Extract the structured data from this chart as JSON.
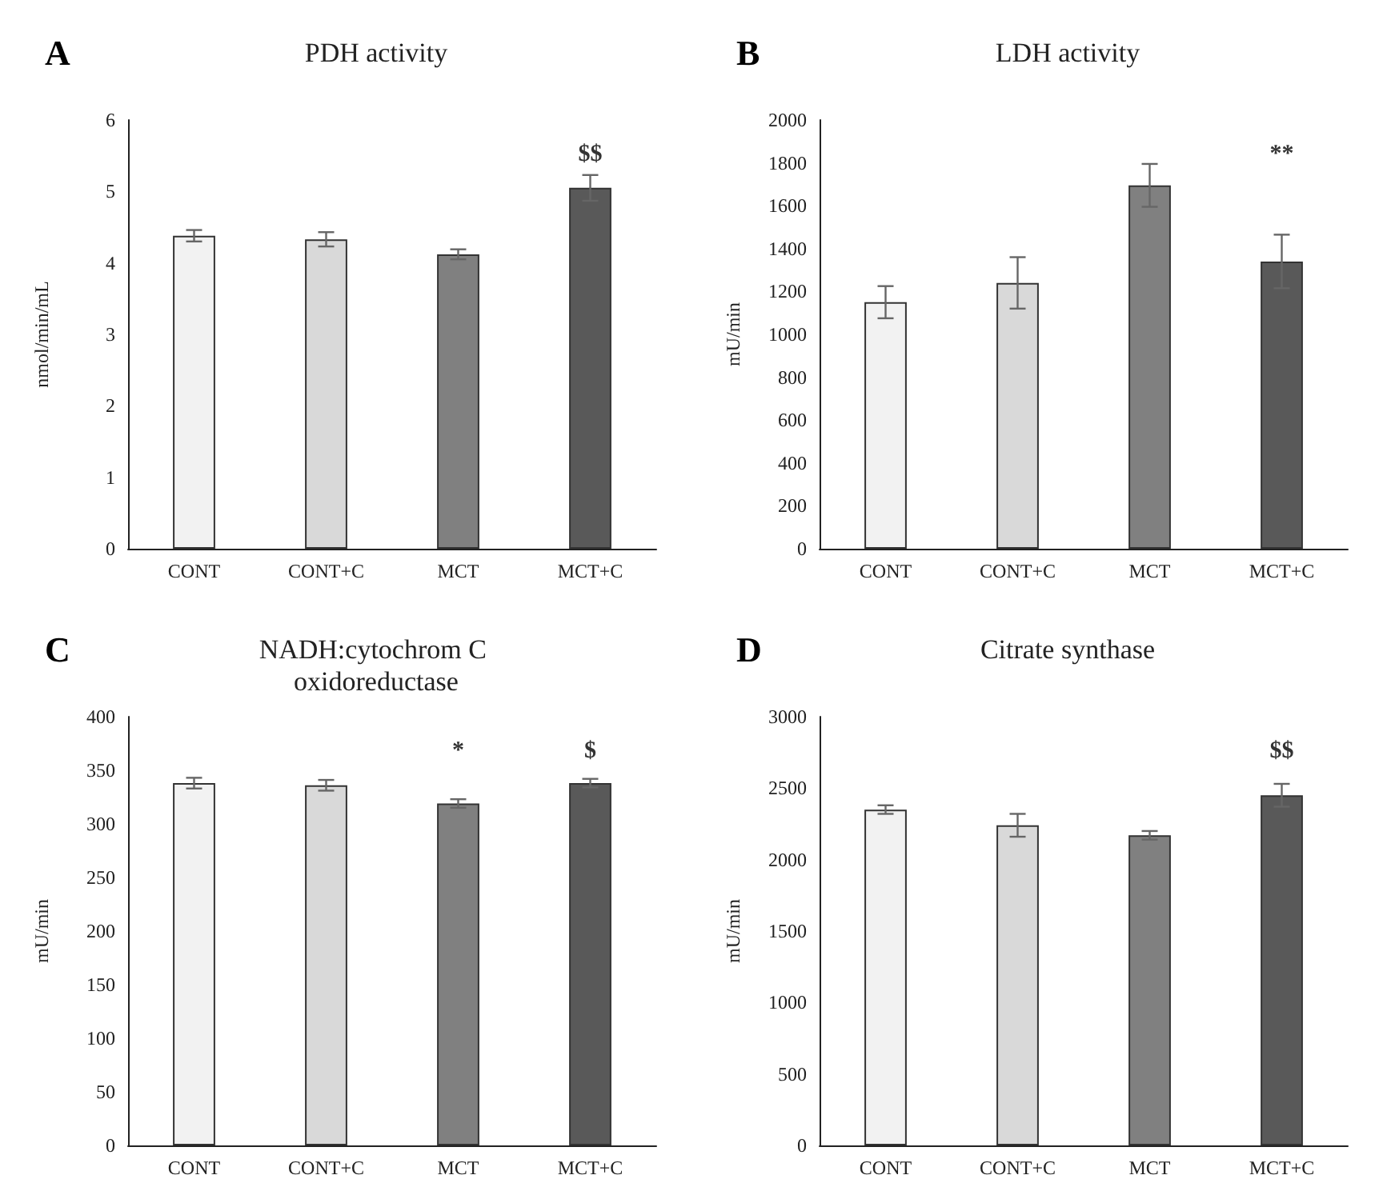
{
  "chart_data": [
    {
      "type": "bar",
      "title": "PDH activity",
      "ylabel": "nmol/min/mL",
      "categories": [
        "CONT",
        "CONT+C",
        "MCT",
        "MCT+C"
      ],
      "values": [
        4.38,
        4.33,
        4.12,
        5.05
      ],
      "colors": [
        "#f2f2f2",
        "#d9d9d9",
        "#808080",
        "#595959"
      ],
      "errors": [
        0.08,
        0.1,
        0.07,
        0.18
      ],
      "ylim": [
        0,
        6
      ],
      "yticks": [
        0,
        1,
        2,
        3,
        4,
        5,
        6
      ],
      "annotations": [
        "A",
        "$$"
      ]
    },
    {
      "type": "bar",
      "title": "LDH activity",
      "ylabel": "mU/min",
      "categories": [
        "CONT",
        "CONT+C",
        "MCT",
        "MCT+C"
      ],
      "values": [
        1150,
        1240,
        1695,
        1340
      ],
      "colors": [
        "#f2f2f2",
        "#d9d9d9",
        "#808080",
        "#595959"
      ],
      "errors": [
        75,
        120,
        100,
        125
      ],
      "ylim": [
        0,
        2000
      ],
      "yticks": [
        0,
        200,
        400,
        600,
        800,
        1000,
        1200,
        1400,
        1600,
        1800,
        2000
      ],
      "annotations": [
        "B",
        "**"
      ]
    },
    {
      "type": "bar",
      "title": "NADH:cytochrom C oxidoreductase",
      "ylabel": "mU/min",
      "categories": [
        "CONT",
        "CONT+C",
        "MCT",
        "MCT+C"
      ],
      "values": [
        338,
        336,
        319,
        338
      ],
      "colors": [
        "#f2f2f2",
        "#d9d9d9",
        "#808080",
        "#595959"
      ],
      "errors": [
        5,
        5,
        4,
        4
      ],
      "ylim": [
        0,
        400
      ],
      "yticks": [
        0,
        50,
        100,
        150,
        200,
        250,
        300,
        350,
        400
      ],
      "annotations": [
        "C",
        "*",
        "$"
      ]
    },
    {
      "type": "bar",
      "title": "Citrate synthase",
      "ylabel": "mU/min",
      "categories": [
        "CONT",
        "CONT+C",
        "MCT",
        "MCT+C"
      ],
      "values": [
        2350,
        2240,
        2170,
        2450
      ],
      "colors": [
        "#f2f2f2",
        "#d9d9d9",
        "#808080",
        "#595959"
      ],
      "errors": [
        30,
        80,
        30,
        80
      ],
      "ylim": [
        0,
        3000
      ],
      "yticks": [
        0,
        500,
        1000,
        1500,
        2000,
        2500,
        3000
      ],
      "annotations": [
        "D",
        "$$"
      ]
    }
  ]
}
